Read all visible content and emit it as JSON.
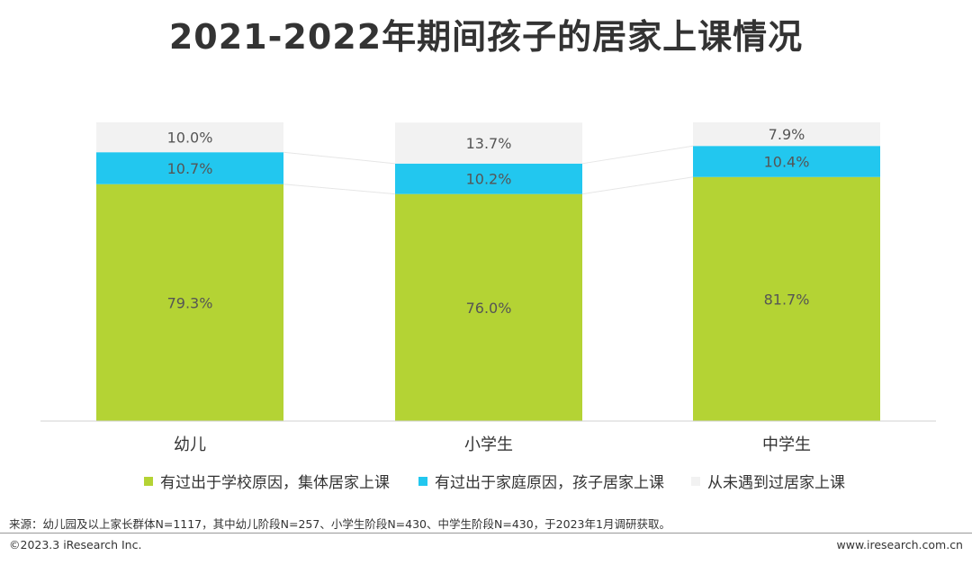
{
  "chart_data": {
    "type": "bar",
    "stacked": true,
    "title": "2021-2022年期间孩子的居家上课情况",
    "categories": [
      "幼儿",
      "小学生",
      "中学生"
    ],
    "series": [
      {
        "name": "有过出于学校原因，集体居家上课",
        "values": [
          79.3,
          76.0,
          81.7
        ],
        "labels": [
          "79.3%",
          "76.0%",
          "81.7%"
        ],
        "color": "#b4d334"
      },
      {
        "name": "有过出于家庭原因，孩子居家上课",
        "values": [
          10.7,
          10.2,
          10.4
        ],
        "labels": [
          "10.7%",
          "10.2%",
          "10.4%"
        ],
        "color": "#22c7ef"
      },
      {
        "name": "从未遇到过居家上课",
        "values": [
          10.0,
          13.7,
          7.9
        ],
        "labels": [
          "10.0%",
          "13.7%",
          "7.9%"
        ],
        "color": "#f2f2f2"
      }
    ],
    "ylim": [
      0,
      100
    ],
    "legend_position": "bottom"
  },
  "colors": {
    "title": "#333333",
    "axis": "#d0d0d0",
    "label": "#555555"
  },
  "source_note": "来源：幼儿园及以上家长群体N=1117，其中幼儿阶段N=257、小学生阶段N=430、中学生阶段N=430，于2023年1月调研获取。",
  "footer": {
    "copyright": "©2023.3 iResearch Inc.",
    "website": "www.iresearch.com.cn"
  }
}
